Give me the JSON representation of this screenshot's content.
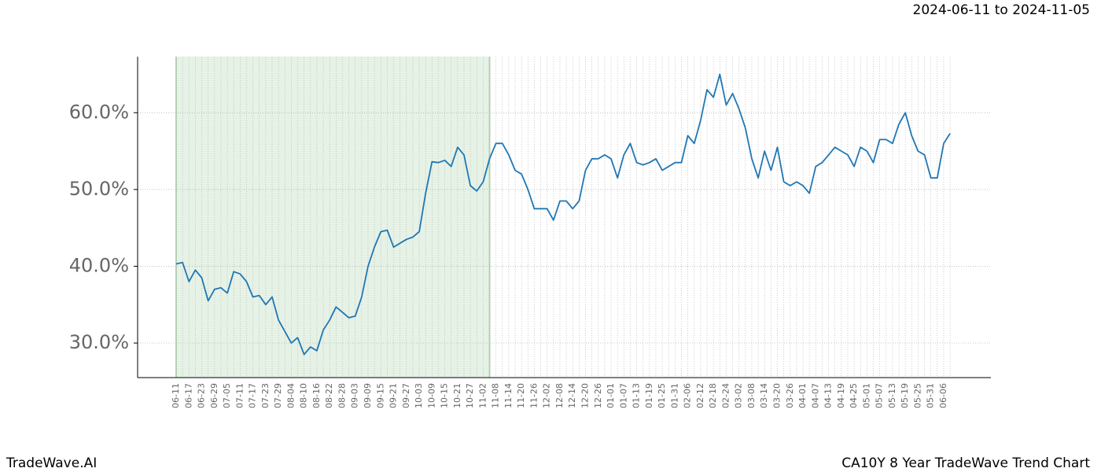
{
  "chart_data": {
    "type": "line",
    "header": "2024-06-11 to 2024-11-05",
    "brand": "TradeWave.AI",
    "title": "CA10Y 8 Year TradeWave Trend Chart",
    "categories": [
      "06-11",
      null,
      "06-17",
      null,
      "06-23",
      null,
      "06-29",
      null,
      "07-05",
      null,
      "07-11",
      null,
      "07-17",
      null,
      "07-23",
      null,
      "07-29",
      null,
      "08-04",
      null,
      "08-10",
      null,
      "08-16",
      null,
      "08-22",
      null,
      "08-28",
      null,
      "09-03",
      null,
      "09-09",
      null,
      "09-15",
      null,
      "09-21",
      null,
      "09-27",
      null,
      "10-03",
      null,
      "10-09",
      null,
      "10-15",
      null,
      "10-21",
      null,
      "10-27",
      null,
      "11-02",
      null,
      "11-08",
      null,
      "11-14",
      null,
      "11-20",
      null,
      "11-26",
      null,
      "12-02",
      null,
      "12-08",
      null,
      "12-14",
      null,
      "12-20",
      null,
      "12-26",
      null,
      "01-01",
      null,
      "01-07",
      null,
      "01-13",
      null,
      "01-19",
      null,
      "01-25",
      null,
      "01-31",
      null,
      "02-06",
      null,
      "02-12",
      null,
      "02-18",
      null,
      "02-24",
      null,
      "03-02",
      null,
      "03-08",
      null,
      "03-14",
      null,
      "03-20",
      null,
      "03-26",
      null,
      "04-01",
      null,
      "04-07",
      null,
      "04-13",
      null,
      "04-19",
      null,
      "04-25",
      null,
      "05-01",
      null,
      "05-07",
      null,
      "05-13",
      null,
      "05-19",
      null,
      "05-25",
      null,
      "05-31",
      null,
      "06-06",
      null
    ],
    "series": [
      {
        "color": "#1f77b4",
        "values": [
          40.3,
          40.5,
          38,
          39.5,
          38.5,
          35.5,
          37,
          37.2,
          36.5,
          39.3,
          39,
          38,
          36,
          36.2,
          35,
          36,
          33,
          31.5,
          30,
          30.7,
          28.5,
          29.5,
          29,
          31.7,
          33,
          34.7,
          34,
          33.3,
          33.5,
          36,
          40,
          42.5,
          44.5,
          44.7,
          42.5,
          43,
          43.5,
          43.8,
          44.5,
          49.5,
          53.6,
          53.5,
          53.8,
          53,
          55.5,
          54.5,
          50.5,
          49.8,
          51,
          54,
          56,
          56,
          54.5,
          52.5,
          52,
          50,
          47.5,
          47.5,
          47.5,
          46,
          48.5,
          48.5,
          47.5,
          48.5,
          52.5,
          54,
          54,
          54.5,
          54,
          51.5,
          54.5,
          56,
          53.5,
          53.2,
          53.5,
          54,
          52.5,
          53,
          53.5,
          53.5,
          57,
          56,
          59,
          63,
          62,
          65,
          61,
          62.5,
          60.5,
          58,
          54,
          51.5,
          55,
          52.5,
          55.5,
          51,
          50.5,
          51,
          50.5,
          49.5,
          53,
          53.5,
          54.5,
          55.5,
          55,
          54.5,
          53,
          55.5,
          55,
          53.5,
          56.5,
          56.5,
          56,
          58.5,
          60,
          57,
          55,
          54.5,
          51.5,
          51.5,
          56,
          57.3
        ]
      }
    ],
    "shaded_span": {
      "from": 0,
      "to": 49,
      "color": "#e6f2e6"
    },
    "ylim": [
      25.5,
      67.3
    ],
    "yticks": [
      {
        "value": 30,
        "label": "30.0%"
      },
      {
        "value": 40,
        "label": "40.0%"
      },
      {
        "value": 50,
        "label": "50.0%"
      },
      {
        "value": 60,
        "label": "60.0%"
      }
    ],
    "grid": true
  }
}
